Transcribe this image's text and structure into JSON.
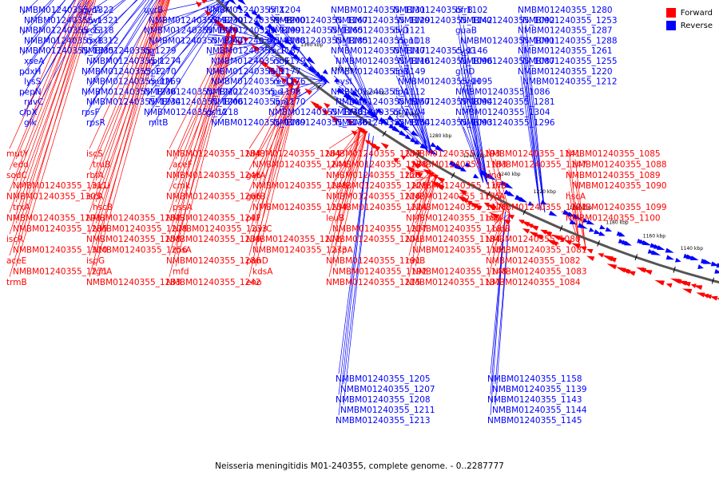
{
  "caption": "Neisseria meningitidis M01-240355, complete genome. - 0..2287777",
  "legend": {
    "forward_label": "Forward",
    "reverse_label": "Reverse",
    "forward_color": "#ff0000",
    "reverse_color": "#0000ff"
  },
  "map": {
    "backbone_color": "#555555",
    "tick_labels": [
      "1460 kbp",
      "1440 kbp",
      "1420 kbp",
      "1400 kbp",
      "1380 kbp",
      "1360 kbp",
      "1340 kbp",
      "1320 kbp",
      "1300 kbp",
      "1280 kbp",
      "1260 kbp",
      "1240 kbp",
      "1220 kbp",
      "1200 kbp",
      "1180 kbp",
      "1160 kbp",
      "1140 kbp",
      "1120 kbp"
    ]
  },
  "reverse_labels": [
    "NMBM01240355_1322",
    "NMBM01240355_1321",
    "NMBM01240355_1318",
    "NMBM01240355_1312",
    "NMBM01240355_1335",
    "xseA",
    "pdxH",
    "lysS",
    "pepN",
    "ruvC",
    "clpX",
    "glk",
    "gyrA",
    "zwf",
    "proS",
    "trxB",
    "NMBM01240355_1279",
    "NMBM01240355_1274",
    "NMBM01240355_1270",
    "NMBM01240355_1269",
    "NMBM01240355_1236",
    "NMBM01240355_1234",
    "rpsF",
    "rpsR",
    "uvrB",
    "NMBM01240355_1230",
    "NMBM01240355_1229",
    "NMBM01240355_1243",
    "tig",
    "rplI",
    "clpP",
    "mutM",
    "NMBM01240355_1222",
    "NMBM01240355_1206",
    "NMBM01240355_1218",
    "mltB",
    "NMBM01240355_1204",
    "NMBM01240355_1200",
    "NMBM01240355_1199",
    "NMBM01240355_1188",
    "NMBM01240355_1187",
    "NMBM01240355_1179",
    "NMBM01240355_1177",
    "NMBM01240355_1176",
    "NMBM01240355_1198",
    "NMBM01240355_1170",
    "gshA",
    "NMBM01240355_1189",
    "hflX",
    "NMBM01240355_1167",
    "NMBM01240355_1165",
    "NMBM01240355_1185",
    "recR",
    "ribE",
    "lolD",
    "recD",
    "rpe",
    "lon",
    "NMBM01240355_1138",
    "NMBM01240355_1136",
    "NMBM01240355_1131",
    "NMBM01240355_1129",
    "NMBM01240355_1121",
    "NMBM01240355_1118",
    "NMBM01240355_1117",
    "NMBM01240355_1116",
    "NMBM01240355_1149",
    "cysI",
    "NMBM01240355_1112",
    "NMBM01240355_1157",
    "NMBM01240355_1104",
    "NMBM01240355_1154",
    "NMBM01240355_1102",
    "NMBM01240355_1142",
    "ilvD",
    "hpnD",
    "NMBM01240355_1146",
    "NMBM01240355_1096",
    "lipB",
    "NMBM01240355_1095",
    "lipA",
    "NMBM01240355_1094",
    "bfrA",
    "NMBM01240355_1093",
    "bfrB",
    "NMBM01240355_1092",
    "guaB",
    "NMBM01240355_1091",
    "cysG",
    "NMBM01240355_1087",
    "glnD",
    "cysH",
    "NMBM01240355_1086",
    "NMBM01240355_1281",
    "NMBM01240355_1304",
    "NMBM01240355_1296",
    "NMBM01240355_1280",
    "NMBM01240355_1253",
    "NMBM01240355_1287",
    "NMBM01240355_1288",
    "NMBM01240355_1261",
    "NMBM01240355_1255",
    "NMBM01240355_1220",
    "NMBM01240355_1212"
  ],
  "forward_labels": [
    "mutY",
    "edd",
    "sodC",
    "NMBM01240355_1311",
    "NMBM01240355_1305",
    "trxA",
    "NMBM01240355_1293",
    "NMBM01240355_1285",
    "iscR",
    "NMBM01240355_1310",
    "aceE",
    "NMBM01240355_1271",
    "trmB",
    "iscS",
    "truB",
    "rbfA",
    "iscU",
    "iscA",
    "hscB",
    "NMBM01240355_1282",
    "NMBM01240355_1278",
    "NMBM01240355_1258",
    "NMBM01240355_1256",
    "ispG",
    "fghA",
    "NMBM01240355_1283",
    "NMBM01240355_1284",
    "aceF",
    "NMBM01240355_1246",
    "cmk",
    "NMBM01240355_1266",
    "pssA",
    "NMBM01240355_1247",
    "NMBM01240355_1233",
    "NMBM01240355_1239",
    "rpsA",
    "NMBM01240355_1286",
    "mfd",
    "NMBM01240355_1242",
    "NMBM01240355_1264",
    "NMBM01240355_1244",
    "gatA",
    "NMBM01240355_1248",
    "gatB",
    "NMBM01240355_1254",
    "pilF",
    "uvrC",
    "NMBM01240355_1272",
    "NMBM01240355_1273",
    "panD",
    "kdsA",
    "eno",
    "NMBM01240355_1237",
    "NMBM01240355_1238",
    "NMBM01240355_1226",
    "NMBM01240355_1228",
    "NMBM01240355_1216",
    "NMBM01240355_1214",
    "leuB",
    "NMBM01240355_1217",
    "NMBM01240355_1201",
    "aspA",
    "NMBM01240355_1191",
    "NMBM01240355_1192",
    "NMBM01240355_1215",
    "NMBM01240355_1193",
    "NMBM01240355_1183",
    "thrC",
    "NMBM01240355_1173",
    "NMBM01240355_1175",
    "NMBM01240355_1178",
    "NMBM01240355_1180",
    "NMBM01240355_1181",
    "NMBM01240355_1184",
    "NMBM01240355_1161",
    "ruvB",
    "NMBM01240355_1148",
    "NMBM01240355_1137",
    "NMBM01240355_1141",
    "NMBM01240355_1147",
    "ung",
    "rnr",
    "typA",
    "NMBM01240355_1122",
    "mpl",
    "bioB",
    "NMBM01240355_1080",
    "NMBM01240355_1081",
    "NMBM01240355_1082",
    "NMBM01240355_1083",
    "NMBM01240355_1084",
    "NMBM01240355_1085",
    "NMBM01240355_1088",
    "NMBM01240355_1089",
    "NMBM01240355_1090",
    "hscA",
    "NMBM01240355_1099",
    "NMBM01240355_1100"
  ],
  "reverse_labels_lower": [
    "NMBM01240355_1205",
    "NMBM01240355_1207",
    "NMBM01240355_1208",
    "NMBM01240355_1211",
    "NMBM01240355_1213",
    "NMBM01240355_1158",
    "NMBM01240355_1139",
    "NMBM01240355_1143",
    "NMBM01240355_1144",
    "NMBM01240355_1145"
  ]
}
